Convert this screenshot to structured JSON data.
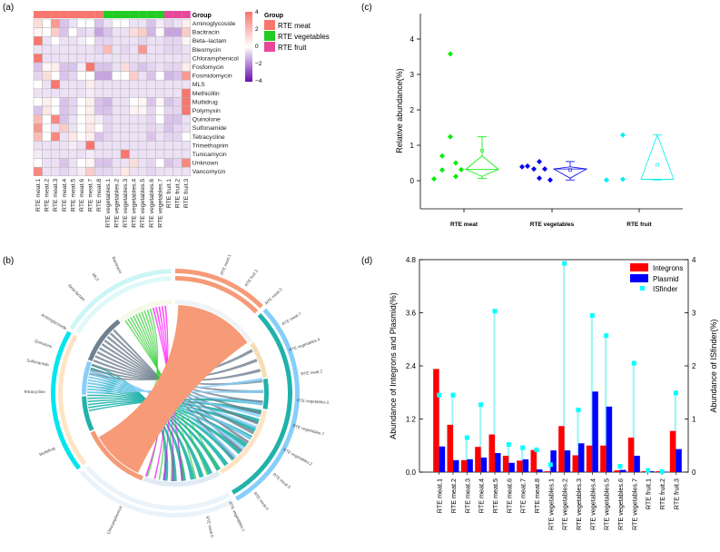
{
  "panel_labels": {
    "a": "(a)",
    "b": "(b)",
    "c": "(c)",
    "d": "(d)"
  },
  "chart_data": [
    {
      "type": "heatmap",
      "panel": "a",
      "group_title": "Group",
      "columns": [
        "RTE meat.1",
        "RTE meat.2",
        "RTE meat.3",
        "RTE meat.4",
        "RTE meat.5",
        "RTE meat.6",
        "RTE meat.7",
        "RTE meat.8",
        "RTE vegetables.1",
        "RTE vegetables.2",
        "RTE vegetables.3",
        "RTE vegetables.4",
        "RTE vegetables.5",
        "RTE vegetables.6",
        "RTE vegetables.7",
        "RTE fruit.1",
        "RTE fruit.2",
        "RTE fruit.3"
      ],
      "column_groups": [
        "RTE meat",
        "RTE meat",
        "RTE meat",
        "RTE meat",
        "RTE meat",
        "RTE meat",
        "RTE meat",
        "RTE meat",
        "RTE vegetables",
        "RTE vegetables",
        "RTE vegetables",
        "RTE vegetables",
        "RTE vegetables",
        "RTE vegetables",
        "RTE vegetables",
        "RTE fruit",
        "RTE fruit",
        "RTE fruit"
      ],
      "rows": [
        "Aminoglycoside",
        "Bacitracin",
        "Beta–lactam",
        "Bleomycin",
        "Chloramphenicol",
        "Fosfomycin",
        "Fosmidomycin",
        "MLS",
        "Methicillin",
        "Multidrug",
        "Polymyxin",
        "Quinolone",
        "Sulfonamide",
        "Tetracycline",
        "Trimethoprim",
        "Tunicamycin",
        "Unknown",
        "Vancomycin"
      ],
      "values": [
        [
          1,
          0,
          3,
          -1,
          -0.5,
          0,
          0,
          -1,
          -0.5,
          0,
          0,
          -0.5,
          -0.5,
          -1,
          -0.3,
          -0.7,
          -0.5,
          0.5
        ],
        [
          0.3,
          0,
          1.5,
          -1,
          0,
          -0.7,
          -0.5,
          -1.5,
          -1,
          -0.5,
          -0.5,
          1,
          1.5,
          -1.2,
          0.2,
          -1.5,
          -1.5,
          1.5
        ],
        [
          4,
          -0.5,
          0,
          -0.5,
          -0.5,
          -0.3,
          0,
          -0.7,
          -0.7,
          -0.5,
          -0.5,
          -0.5,
          -0.7,
          -0.5,
          -0.5,
          -0.7,
          -0.7,
          0.3
        ],
        [
          -0.5,
          -0.5,
          -0.5,
          -0.5,
          -0.5,
          -0.5,
          -0.5,
          -0.7,
          2,
          -0.5,
          -0.7,
          -0.5,
          3,
          -0.5,
          -0.5,
          -0.7,
          -0.7,
          -0.5
        ],
        [
          4,
          -0.5,
          -0.5,
          -0.5,
          -0.5,
          -0.5,
          -0.5,
          -0.5,
          -0.5,
          -0.5,
          -0.5,
          -0.5,
          -0.5,
          -0.5,
          -0.5,
          -0.5,
          -0.5,
          -0.5
        ],
        [
          -1,
          0.3,
          0.5,
          -1,
          -1,
          -0.3,
          4,
          -1,
          -1,
          -0.5,
          1,
          -0.7,
          -1,
          -0.7,
          -0.5,
          -0.7,
          -0.7,
          0.5
        ],
        [
          -0.7,
          1,
          0,
          -1,
          -0.7,
          0,
          0,
          -1.5,
          -1.5,
          0,
          0,
          1.5,
          -0.5,
          -1,
          0,
          -1.2,
          -1,
          3
        ],
        [
          0,
          -0.5,
          4,
          -0.5,
          -0.5,
          -0.5,
          0.5,
          -0.5,
          -0.5,
          -0.5,
          -0.5,
          -0.5,
          -0.5,
          -0.5,
          -0.5,
          -0.5,
          -0.5,
          -0.5
        ],
        [
          -0.5,
          -0.5,
          -0.5,
          -0.5,
          -0.5,
          -0.5,
          -0.3,
          -0.5,
          -0.5,
          -0.5,
          -0.5,
          -0.5,
          -0.5,
          -0.5,
          -0.5,
          -0.5,
          -0.5,
          4
        ],
        [
          0,
          0.5,
          0,
          -1,
          -0.7,
          0,
          0.5,
          -1,
          -1.2,
          -0.5,
          -0.5,
          0,
          0.3,
          -1,
          0.3,
          -1,
          -0.7,
          4
        ],
        [
          -1,
          0.7,
          0,
          -1,
          -0.7,
          0,
          0.5,
          -1,
          -1,
          -0.5,
          -0.5,
          0.3,
          0.3,
          -0.7,
          0,
          -0.7,
          -0.7,
          4
        ],
        [
          2,
          0,
          3.5,
          -1,
          -0.5,
          0,
          0.5,
          -0.3,
          -0.7,
          -0.5,
          -0.5,
          -0.5,
          -0.5,
          -0.7,
          0,
          -1,
          -1,
          -0.5
        ],
        [
          3,
          0,
          -0.5,
          1.5,
          -0.5,
          0,
          0.7,
          0,
          -0.7,
          -0.5,
          -0.5,
          -0.5,
          -0.5,
          -0.7,
          -0.5,
          -1,
          -0.7,
          -0.5
        ],
        [
          2,
          0,
          3.5,
          -0.5,
          0.7,
          0,
          0.5,
          -1,
          -0.7,
          -0.5,
          -0.5,
          -0.5,
          -0.5,
          -1,
          -0.5,
          -0.7,
          -0.7,
          0
        ],
        [
          -0.5,
          -0.5,
          -0.5,
          -0.5,
          -0.3,
          -0.5,
          4,
          -0.5,
          -0.5,
          -0.5,
          -0.5,
          -0.5,
          -0.5,
          -0.5,
          -0.5,
          -0.5,
          -0.5,
          -0.5
        ],
        [
          -0.3,
          -0.5,
          -0.5,
          -0.5,
          -0.5,
          -0.5,
          -0.3,
          -0.5,
          -0.5,
          -0.5,
          4,
          -0.5,
          -0.5,
          -0.5,
          -0.5,
          -0.5,
          -0.5,
          -0.5
        ],
        [
          0,
          -0.5,
          -0.5,
          -1,
          -0.5,
          0,
          0.3,
          -1,
          -1,
          -0.5,
          -0.5,
          1,
          -0.5,
          -0.7,
          0,
          -1,
          -0.7,
          3.5
        ],
        [
          3.5,
          -0.5,
          -0.5,
          -0.7,
          -0.5,
          -0.3,
          1.5,
          -0.7,
          -0.7,
          -0.5,
          0.7,
          -0.5,
          -0.5,
          -0.7,
          -0.5,
          -0.5,
          -0.5,
          -0.5
        ]
      ],
      "color_scale": {
        "min": -4,
        "max": 4,
        "ticks": [
          "4",
          "2",
          "0",
          "−2",
          "−4"
        ],
        "low": "#6a0dad",
        "mid": "#ffffff",
        "high": "#f8766d"
      },
      "legend": [
        {
          "label": "RTE meat",
          "color": "#f8766d"
        },
        {
          "label": "RTE vegetables",
          "color": "#22cc22"
        },
        {
          "label": "RTE fruit",
          "color": "#e8489a"
        }
      ]
    },
    {
      "type": "chord",
      "panel": "b",
      "sectors_left": [
        "Tetracycline",
        "Multidrug",
        "Chloramphenicol",
        "Aminoglycoside",
        "Beta-lactam",
        "MLS",
        "Bacitracin",
        "Quinolone",
        "Sulfonamide"
      ],
      "sectors_right": [
        "RTE meat.1",
        "RTE fruit.3",
        "RTE meat.3",
        "RTE meat.7",
        "RTE vegetables.4",
        "RTE meat.2",
        "RTE vegetables.5",
        "RTE vegetables.7",
        "RTE vegetables.2",
        "RTE meat.5",
        "RTE meat.4",
        "RTE vegetables.1",
        "RTE meat.6"
      ],
      "colors": {
        "main": "#f79a77",
        "teal": "#20b2aa",
        "gray": "#708090",
        "light_blue": "#87cefa",
        "green": "#32cd32",
        "magenta": "#ff00ff"
      }
    },
    {
      "type": "scatter",
      "panel": "c",
      "ylabel": "Relative abundance(%)",
      "ylim": [
        -0.8,
        4.7
      ],
      "yticks": [
        "0",
        "1",
        "2",
        "3",
        "4"
      ],
      "categories": [
        "RTE meat",
        "RTE vegetables",
        "RTE fruit"
      ],
      "series": [
        {
          "name": "RTE meat",
          "color": "#00ee00",
          "points": [
            0.05,
            0.3,
            0.7,
            1.24,
            3.58,
            0.12,
            0.5,
            0.31
          ],
          "box": {
            "min": 0.06,
            "q1": 0.12,
            "median": 0.32,
            "q3": 0.7,
            "max": 1.24,
            "mean": 0.85
          }
        },
        {
          "name": "RTE vegetables",
          "color": "#0000ee",
          "points": [
            0.39,
            0.41,
            0.33,
            0.54,
            0.07,
            0.33,
            0.02
          ],
          "box": {
            "min": 0.02,
            "q1": 0.07,
            "median": 0.33,
            "q3": 0.39,
            "max": 0.54,
            "mean": 0.3
          }
        },
        {
          "name": "RTE fruit",
          "color": "#00eeee",
          "points": [
            0.02,
            1.29,
            0.04
          ],
          "box": {
            "min": 0.02,
            "q1": 0.03,
            "median": 0.04,
            "q3": 1.29,
            "max": 1.29,
            "mean": 0.45
          }
        }
      ]
    },
    {
      "type": "bar",
      "panel": "d",
      "ylabel": "Abundance of Integrons and Plasmid(%)",
      "y2label": "Abundance of ISfinder(%)",
      "ylim": [
        0,
        4.8
      ],
      "y2lim": [
        0,
        4
      ],
      "yticks": [
        "0.0",
        "1.2",
        "2.4",
        "3.6",
        "4.8"
      ],
      "y2ticks": [
        "0",
        "1",
        "2",
        "3",
        "4"
      ],
      "categories": [
        "RTE meat.1",
        "RTE meat.2",
        "RTE meat.3",
        "RTE meat.4",
        "RTE meat.5",
        "RTE meat.6",
        "RTE meat.7",
        "RTE meat.8",
        "RTE vegetables.1",
        "RTE vegetables.2",
        "RTE vegetables.3",
        "RTE vegetables.4",
        "RTE vegetables.5",
        "RTE vegetables.6",
        "RTE vegetables.7",
        "RTE fruit.1",
        "RTE fruit.2",
        "RTE fruit.3"
      ],
      "series": [
        {
          "name": "Integrons",
          "color": "#ff0000",
          "axis": "left",
          "values": [
            2.33,
            1.07,
            0.27,
            0.57,
            0.85,
            0.37,
            0.26,
            0.5,
            0.02,
            1.04,
            0.38,
            0.6,
            0.6,
            0.04,
            0.78,
            0.02,
            0.02,
            0.93
          ]
        },
        {
          "name": "Plasmid",
          "color": "#0000ff",
          "axis": "left",
          "values": [
            0.58,
            0.27,
            0.29,
            0.33,
            0.43,
            0.21,
            0.29,
            0.06,
            0.49,
            0.49,
            0.65,
            1.82,
            1.48,
            0.05,
            0.37,
            0.02,
            0.01,
            0.52
          ]
        },
        {
          "name": "ISfinder",
          "color": "#00ffff",
          "axis": "right",
          "values": [
            1.45,
            1.45,
            0.65,
            1.27,
            3.03,
            0.52,
            0.46,
            0.42,
            0.14,
            3.93,
            1.17,
            2.95,
            2.57,
            0.11,
            2.05,
            0.03,
            0.01,
            1.49
          ]
        }
      ],
      "legend_position": "top-right"
    }
  ]
}
